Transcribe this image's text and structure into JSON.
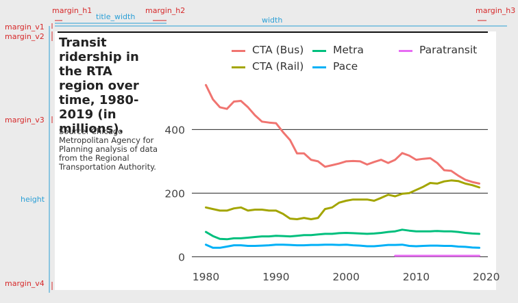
{
  "annotations": {
    "margin_h1": "margin_h1",
    "title_width": "title_width",
    "margin_h2": "margin_h2",
    "width": "width",
    "margin_h3": "margin_h3",
    "margin_v1": "margin_v1",
    "margin_v2": "margin_v2",
    "margin_v3": "margin_v3",
    "height": "height",
    "margin_v4": "margin_v4"
  },
  "colors": {
    "annotation_red": "#d62728",
    "annotation_blue": "#2a9fd6",
    "background": "#ebebeb",
    "panel": "#ffffff"
  },
  "chart_data": {
    "type": "line",
    "title": "Transit ridership in the RTA region over time, 1980-2019 (in millions).",
    "source": "Source: Chicago Metropolitan Agency for Planning analysis of data from the Regional Transportation Authority.",
    "xlabel": "",
    "ylabel": "",
    "xlim": [
      1978,
      2021
    ],
    "ylim": [
      -10,
      560
    ],
    "xticks": [
      1980,
      1990,
      2000,
      2010,
      2020
    ],
    "yticks": [
      0,
      200,
      400
    ],
    "grid": "horizontal",
    "legend_position": "top",
    "series": [
      {
        "name": "CTA (Bus)",
        "color": "#f07470",
        "x": [
          1980,
          1981,
          1982,
          1983,
          1984,
          1985,
          1986,
          1987,
          1988,
          1989,
          1990,
          1991,
          1992,
          1993,
          1994,
          1995,
          1996,
          1997,
          1998,
          1999,
          2000,
          2001,
          2002,
          2003,
          2004,
          2005,
          2006,
          2007,
          2008,
          2009,
          2010,
          2011,
          2012,
          2013,
          2014,
          2015,
          2016,
          2017,
          2018,
          2019
        ],
        "values": [
          540,
          495,
          470,
          465,
          488,
          490,
          470,
          445,
          425,
          422,
          420,
          392,
          367,
          325,
          325,
          305,
          300,
          283,
          288,
          293,
          300,
          301,
          300,
          290,
          298,
          305,
          295,
          305,
          326,
          318,
          305,
          308,
          310,
          295,
          272,
          270,
          255,
          242,
          235,
          230
        ]
      },
      {
        "name": "CTA (Rail)",
        "color": "#a3a500",
        "x": [
          1980,
          1981,
          1982,
          1983,
          1984,
          1985,
          1986,
          1987,
          1988,
          1989,
          1990,
          1991,
          1992,
          1993,
          1994,
          1995,
          1996,
          1997,
          1998,
          1999,
          2000,
          2001,
          2002,
          2003,
          2004,
          2005,
          2006,
          2007,
          2008,
          2009,
          2010,
          2011,
          2012,
          2013,
          2014,
          2015,
          2016,
          2017,
          2018,
          2019
        ],
        "values": [
          155,
          150,
          145,
          145,
          152,
          155,
          145,
          148,
          148,
          145,
          145,
          135,
          120,
          118,
          122,
          118,
          122,
          150,
          155,
          170,
          176,
          180,
          180,
          180,
          176,
          185,
          195,
          190,
          198,
          200,
          210,
          220,
          232,
          230,
          237,
          240,
          238,
          230,
          225,
          218
        ]
      },
      {
        "name": "Metra",
        "color": "#00bf7d",
        "x": [
          1980,
          1981,
          1982,
          1983,
          1984,
          1985,
          1986,
          1987,
          1988,
          1989,
          1990,
          1991,
          1992,
          1993,
          1994,
          1995,
          1996,
          1997,
          1998,
          1999,
          2000,
          2001,
          2002,
          2003,
          2004,
          2005,
          2006,
          2007,
          2008,
          2009,
          2010,
          2011,
          2012,
          2013,
          2014,
          2015,
          2016,
          2017,
          2018,
          2019
        ],
        "values": [
          78,
          65,
          56,
          55,
          58,
          58,
          60,
          62,
          64,
          64,
          66,
          65,
          64,
          66,
          68,
          68,
          70,
          72,
          72,
          74,
          75,
          74,
          73,
          72,
          73,
          75,
          78,
          80,
          85,
          82,
          80,
          80,
          80,
          81,
          80,
          80,
          78,
          75,
          73,
          72
        ]
      },
      {
        "name": "Pace",
        "color": "#00b0f6",
        "x": [
          1980,
          1981,
          1982,
          1983,
          1984,
          1985,
          1986,
          1987,
          1988,
          1989,
          1990,
          1991,
          1992,
          1993,
          1994,
          1995,
          1996,
          1997,
          1998,
          1999,
          2000,
          2001,
          2002,
          2003,
          2004,
          2005,
          2006,
          2007,
          2008,
          2009,
          2010,
          2011,
          2012,
          2013,
          2014,
          2015,
          2016,
          2017,
          2018,
          2019
        ],
        "values": [
          38,
          28,
          28,
          32,
          36,
          36,
          34,
          34,
          35,
          36,
          38,
          38,
          37,
          36,
          36,
          37,
          37,
          38,
          38,
          37,
          38,
          36,
          35,
          33,
          33,
          35,
          37,
          37,
          38,
          34,
          33,
          34,
          35,
          35,
          34,
          34,
          32,
          31,
          29,
          28
        ]
      },
      {
        "name": "Paratransit",
        "color": "#e76bf3",
        "x": [
          2007,
          2008,
          2009,
          2010,
          2011,
          2012,
          2013,
          2014,
          2015,
          2016,
          2017,
          2018,
          2019
        ],
        "values": [
          3,
          3,
          3,
          3,
          3,
          3,
          3,
          3,
          3,
          3,
          3,
          3,
          3
        ]
      }
    ]
  }
}
